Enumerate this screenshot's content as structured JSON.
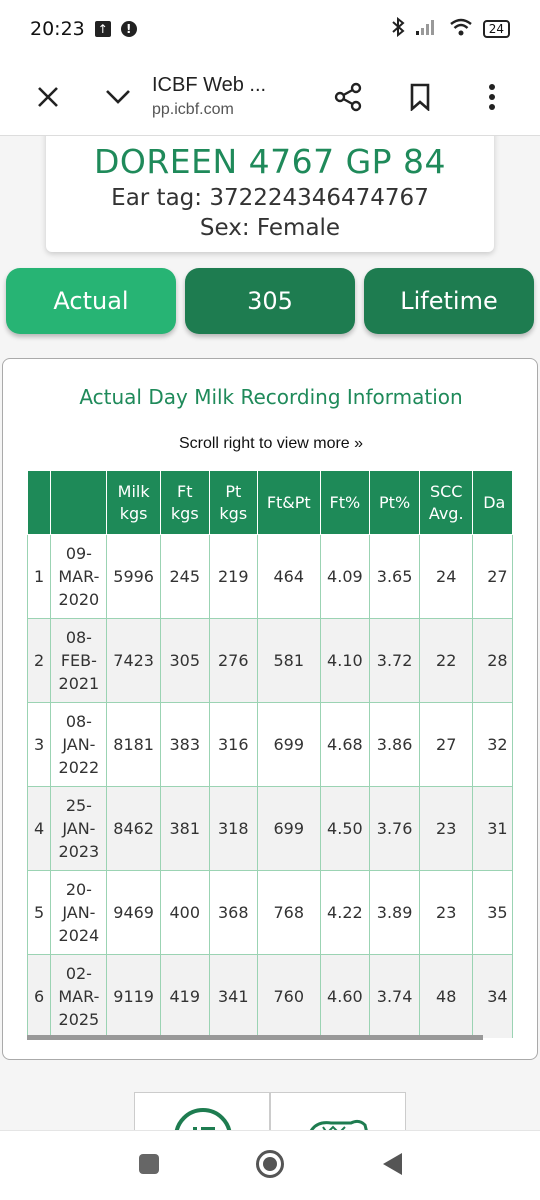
{
  "status": {
    "time": "20:23",
    "battery": "24"
  },
  "browser": {
    "title": "ICBF Web ...",
    "url": "pp.icbf.com"
  },
  "animal": {
    "name": "DOREEN 4767 GP 84",
    "ear_tag": "Ear tag: 372224346474767",
    "sex": "Sex: Female"
  },
  "tabs": {
    "actual": "Actual",
    "t305": "305",
    "lifetime": "Lifetime"
  },
  "panel": {
    "title": "Actual Day Milk Recording Information",
    "scroll_hint": "Scroll right to view more »"
  },
  "table": {
    "headers": [
      "",
      "",
      "Milk kgs",
      "Ft kgs",
      "Pt kgs",
      "Ft&Pt",
      "Ft%",
      "Pt%",
      "SCC Avg.",
      "Da"
    ],
    "rows": [
      [
        "1",
        "09-MAR-2020",
        "5996",
        "245",
        "219",
        "464",
        "4.09",
        "3.65",
        "24",
        "27"
      ],
      [
        "2",
        "08-FEB-2021",
        "7423",
        "305",
        "276",
        "581",
        "4.10",
        "3.72",
        "22",
        "28"
      ],
      [
        "3",
        "08-JAN-2022",
        "8181",
        "383",
        "316",
        "699",
        "4.68",
        "3.86",
        "27",
        "32"
      ],
      [
        "4",
        "25-JAN-2023",
        "8462",
        "381",
        "318",
        "699",
        "4.50",
        "3.76",
        "23",
        "31"
      ],
      [
        "5",
        "20-JAN-2024",
        "9469",
        "400",
        "368",
        "768",
        "4.22",
        "3.89",
        "23",
        "35"
      ],
      [
        "6",
        "02-MAR-2025",
        "9119",
        "419",
        "341",
        "760",
        "4.60",
        "3.74",
        "48",
        "34"
      ]
    ]
  },
  "colors": {
    "brand_green": "#1e8a58",
    "accent_green": "#27b474",
    "title_green": "#1f8a5a"
  }
}
